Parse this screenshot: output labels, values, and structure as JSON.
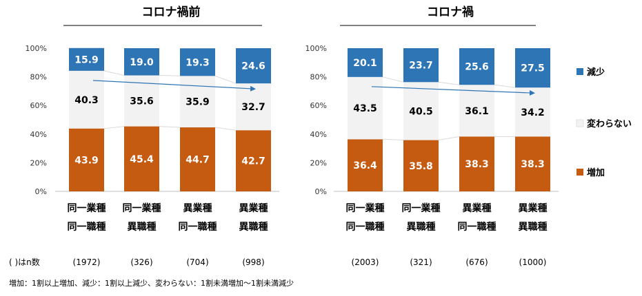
{
  "n_label": "( )はn数",
  "footnote": "増加：1割以上増加、減少：1割以上減少、変わらない：1割未満増加～1割未満減少",
  "legend": [
    {
      "name": "減少",
      "color": "#2E75B6"
    },
    {
      "name": "変わらない",
      "color": "#F2F2F2"
    },
    {
      "name": "増加",
      "color": "#C55A11"
    }
  ],
  "chart_data": [
    {
      "type": "bar",
      "stacked": true,
      "title": "コロナ禍前",
      "yticks": [
        "0%",
        "20%",
        "40%",
        "60%",
        "80%",
        "100%"
      ],
      "categories": [
        [
          "同一業種",
          "同一職種"
        ],
        [
          "同一業種",
          "異職種"
        ],
        [
          "異業種",
          "同一職種"
        ],
        [
          "異業種",
          "異職種"
        ]
      ],
      "n": [
        "(1972)",
        "(326)",
        "(704)",
        "(998)"
      ],
      "series": [
        {
          "name": "増加",
          "values": [
            43.9,
            45.4,
            44.7,
            42.7
          ]
        },
        {
          "name": "変わらない",
          "values": [
            40.3,
            35.6,
            35.9,
            32.7
          ]
        },
        {
          "name": "減少",
          "values": [
            15.9,
            19.0,
            19.3,
            24.6
          ]
        }
      ],
      "labels": {
        "増加": [
          "43.9",
          "45.4",
          "44.7",
          "42.7"
        ],
        "変わらない": [
          "40.3",
          "35.6",
          "35.9",
          "32.7"
        ],
        "減少": [
          "15.9",
          "19.0",
          "19.3",
          "24.6"
        ]
      },
      "ylim": [
        0,
        100
      ]
    },
    {
      "type": "bar",
      "stacked": true,
      "title": "コロナ禍",
      "yticks": [
        "0%",
        "20%",
        "40%",
        "60%",
        "80%",
        "100%"
      ],
      "categories": [
        [
          "同一業種",
          "同一職種"
        ],
        [
          "同一業種",
          "異職種"
        ],
        [
          "異業種",
          "同一職種"
        ],
        [
          "異業種",
          "異職種"
        ]
      ],
      "n": [
        "(2003)",
        "(321)",
        "(676)",
        "(1000)"
      ],
      "series": [
        {
          "name": "増加",
          "values": [
            36.4,
            35.8,
            38.3,
            38.3
          ]
        },
        {
          "name": "変わらない",
          "values": [
            43.5,
            40.5,
            36.1,
            34.2
          ]
        },
        {
          "name": "減少",
          "values": [
            20.1,
            23.7,
            25.6,
            27.5
          ]
        }
      ],
      "labels": {
        "増加": [
          "36.4",
          "35.8",
          "38.3",
          "38.3"
        ],
        "変わらない": [
          "43.5",
          "40.5",
          "36.1",
          "34.2"
        ],
        "減少": [
          "20.1",
          "23.7",
          "25.6",
          "27.5"
        ]
      },
      "ylim": [
        0,
        100
      ]
    }
  ]
}
